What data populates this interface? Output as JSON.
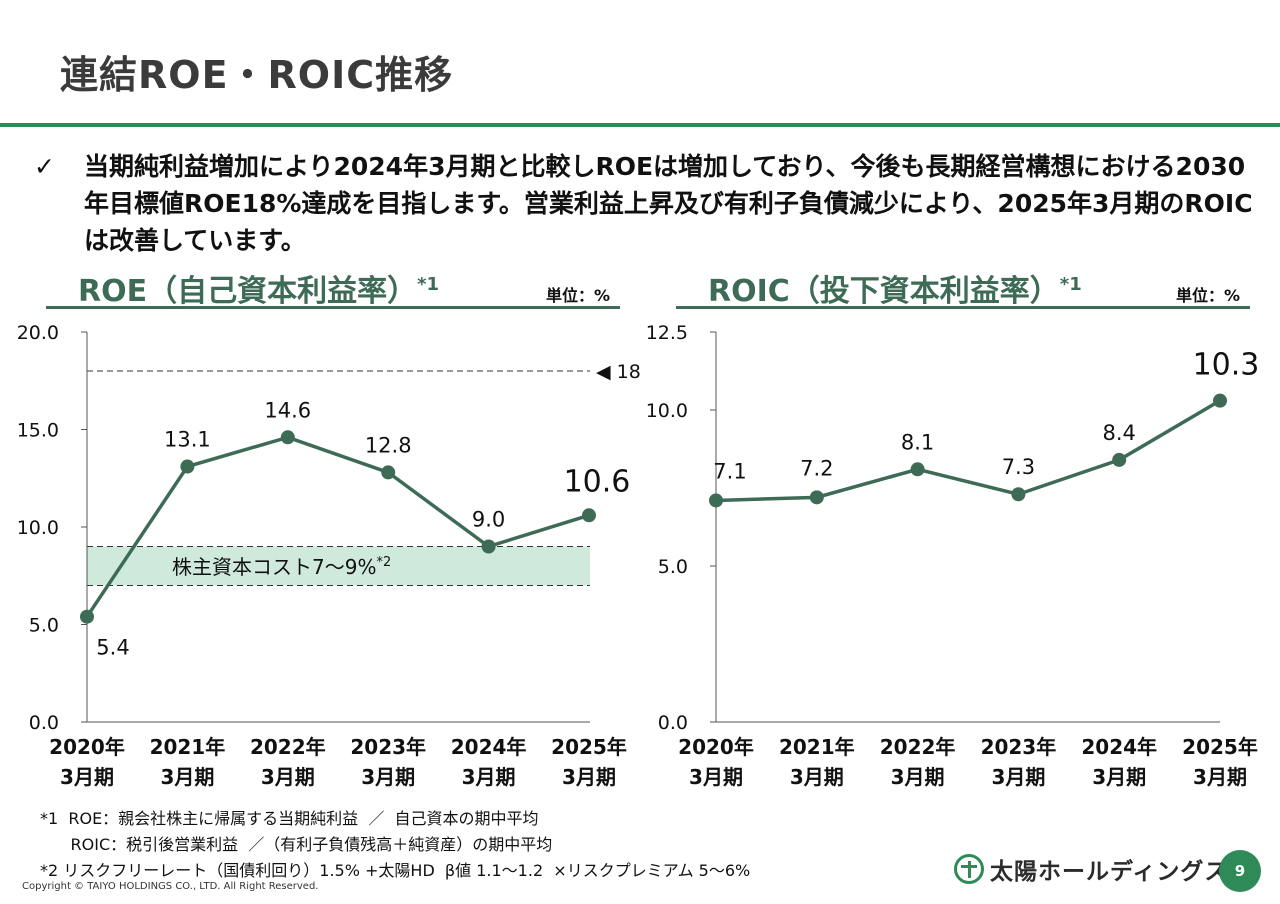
{
  "header": {
    "title": "連結ROE・ROIC推移"
  },
  "bullet": {
    "check": "✓",
    "text": "当期純利益増加により2024年3月期と比較しROEは増加しており、今後も長期経営構想における2030年目標値ROE18%達成を目指します。営業利益上昇及び有利子負債減少により、2025年3月期のROICは改善しています。"
  },
  "roe_panel": {
    "title": "ROE（自己資本利益率）",
    "note_mark": "*1",
    "unit": "単位：%"
  },
  "roic_panel": {
    "title": "ROIC（投下資本利益率）",
    "note_mark": "*1",
    "unit": "単位：%"
  },
  "chart_data": [
    {
      "type": "line",
      "title": "ROE（自己資本利益率）",
      "categories": [
        [
          "2020年",
          "3月期"
        ],
        [
          "2021年",
          "3月期"
        ],
        [
          "2022年",
          "3月期"
        ],
        [
          "2023年",
          "3月期"
        ],
        [
          "2024年",
          "3月期"
        ],
        [
          "2025年",
          "3月期"
        ]
      ],
      "values": [
        5.4,
        13.1,
        14.6,
        12.8,
        9.0,
        10.6
      ],
      "value_labels": [
        "5.4",
        "13.1",
        "14.6",
        "12.8",
        "9.0",
        "10.6"
      ],
      "ylim": [
        0,
        20
      ],
      "yticks": [
        "0.0",
        "5.0",
        "10.0",
        "15.0",
        "20.0"
      ],
      "target": {
        "value": 18,
        "label": "◀ 18"
      },
      "band": {
        "from": 7,
        "to": 9,
        "label": "株主資本コスト7～9%",
        "note_mark": "*2"
      },
      "color": "#3e6b55",
      "band_color": "#cfe9dd"
    },
    {
      "type": "line",
      "title": "ROIC（投下資本利益率）",
      "categories": [
        [
          "2020年",
          "3月期"
        ],
        [
          "2021年",
          "3月期"
        ],
        [
          "2022年",
          "3月期"
        ],
        [
          "2023年",
          "3月期"
        ],
        [
          "2024年",
          "3月期"
        ],
        [
          "2025年",
          "3月期"
        ]
      ],
      "values": [
        7.1,
        7.2,
        8.1,
        7.3,
        8.4,
        10.3
      ],
      "value_labels": [
        "7.1",
        "7.2",
        "8.1",
        "7.3",
        "8.4",
        "10.3"
      ],
      "ylim": [
        0,
        12.5
      ],
      "yticks": [
        "0.0",
        "5.0",
        "10.0",
        "12.5"
      ],
      "color": "#3e6b55"
    }
  ],
  "notes": {
    "n1a": "*1  ROE：親会社株主に帰属する当期純利益  ／  自己資本の期中平均",
    "n1b": "      ROIC：税引後営業利益  ／（有利子負債残高＋純資産）の期中平均",
    "n2": "*2 リスクフリーレート（国債利回り）1.5% +太陽HD  β値 1.1～1.2  ×リスクプレミアム 5～6%"
  },
  "footer": {
    "copyright": "Copyright © TAIYO HOLDINGS CO., LTD.  All Right Reserved.",
    "logo_text": "太陽ホールディングス",
    "page_number": "9"
  }
}
